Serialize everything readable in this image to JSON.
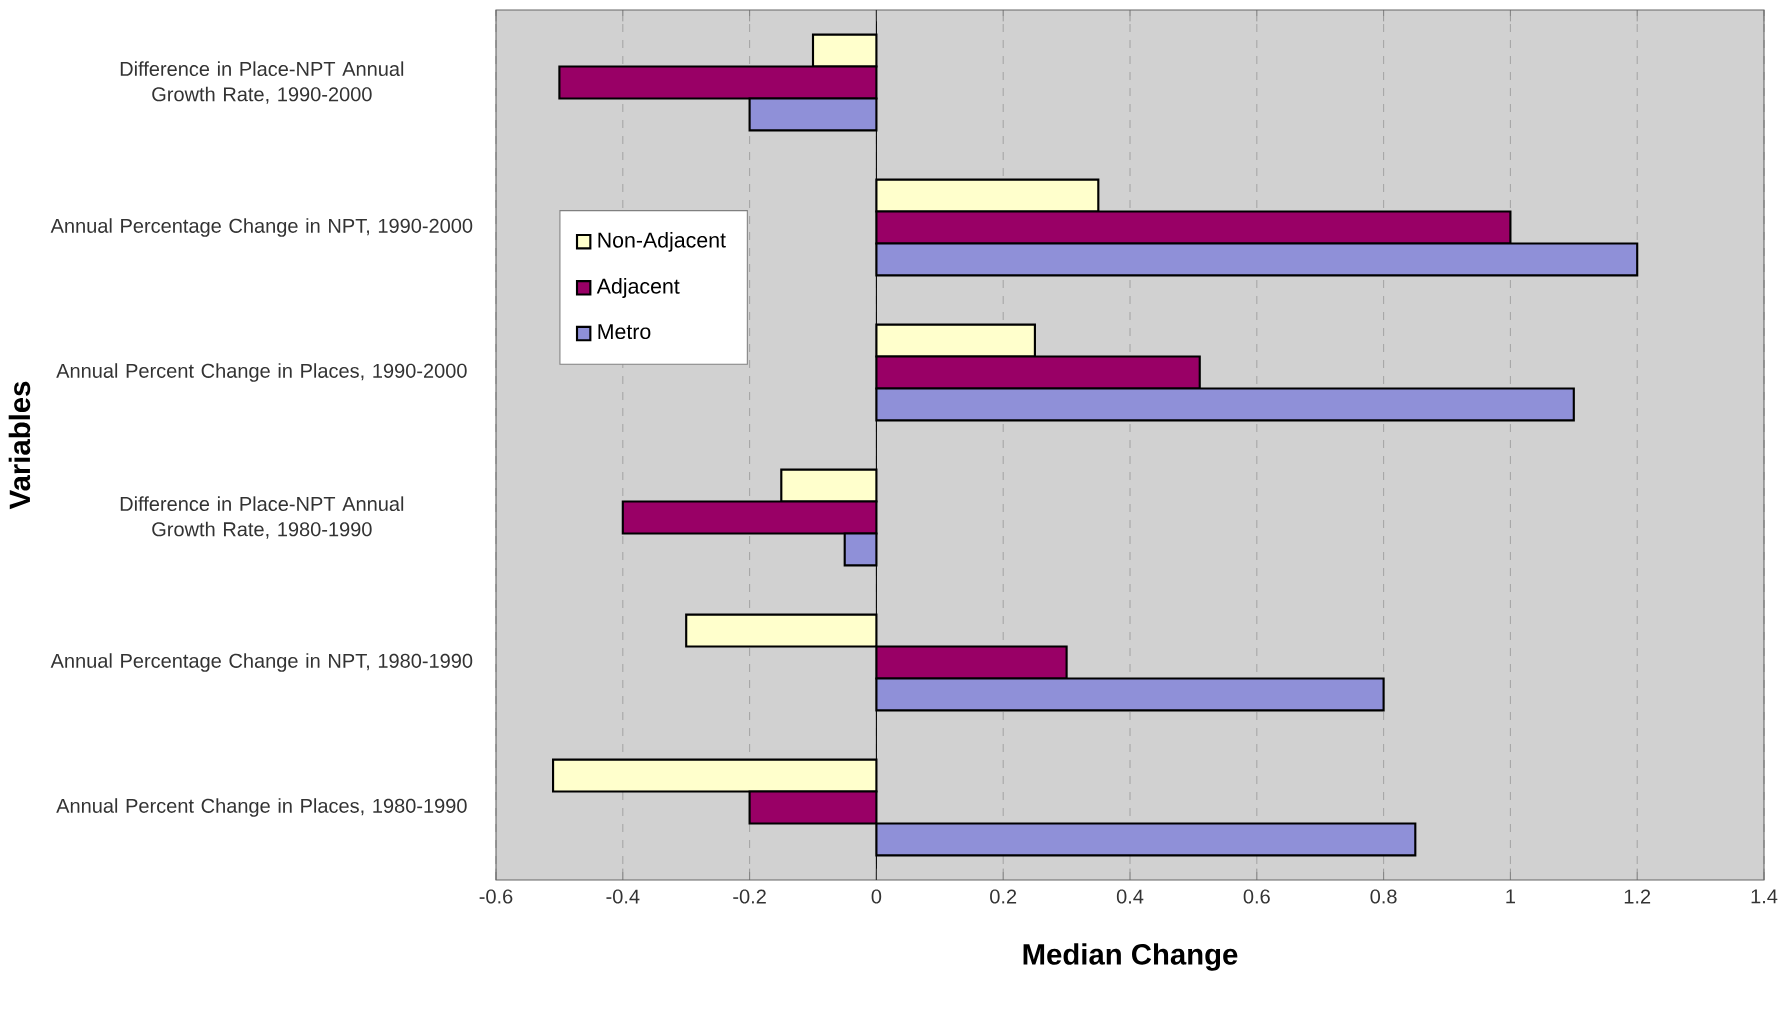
{
  "chart_data": {
    "type": "bar",
    "orientation": "horizontal",
    "xlabel": "Median Change",
    "ylabel": "Variables",
    "categories": [
      "Difference in Place-NPT Annual Growth Rate, 1990-2000",
      "Annual Percentage Change in NPT, 1990-2000",
      "Annual Percent Change in Places, 1990-2000",
      "Difference in Place-NPT Annual Growth Rate, 1980-1990",
      "Annual Percentage Change in NPT, 1980-1990",
      "Annual Percent Change in Places, 1980-1990"
    ],
    "series": [
      {
        "name": "Non-Adjacent",
        "color": "#ffffcc",
        "values": [
          -0.1,
          0.35,
          0.25,
          -0.15,
          -0.3,
          -0.51
        ]
      },
      {
        "name": "Adjacent",
        "color": "#990066",
        "values": [
          -0.5,
          1.0,
          0.51,
          -0.4,
          0.3,
          -0.2
        ]
      },
      {
        "name": "Metro",
        "color": "#8f90d8",
        "values": [
          -0.2,
          1.2,
          1.1,
          -0.05,
          0.8,
          0.85
        ]
      }
    ],
    "xlim": [
      -0.6,
      1.4
    ],
    "xticks": [
      -0.6,
      -0.4,
      -0.2,
      0,
      0.2,
      0.4,
      0.6,
      0.8,
      1,
      1.2,
      1.4
    ],
    "grid": "x",
    "legend": "top left"
  }
}
